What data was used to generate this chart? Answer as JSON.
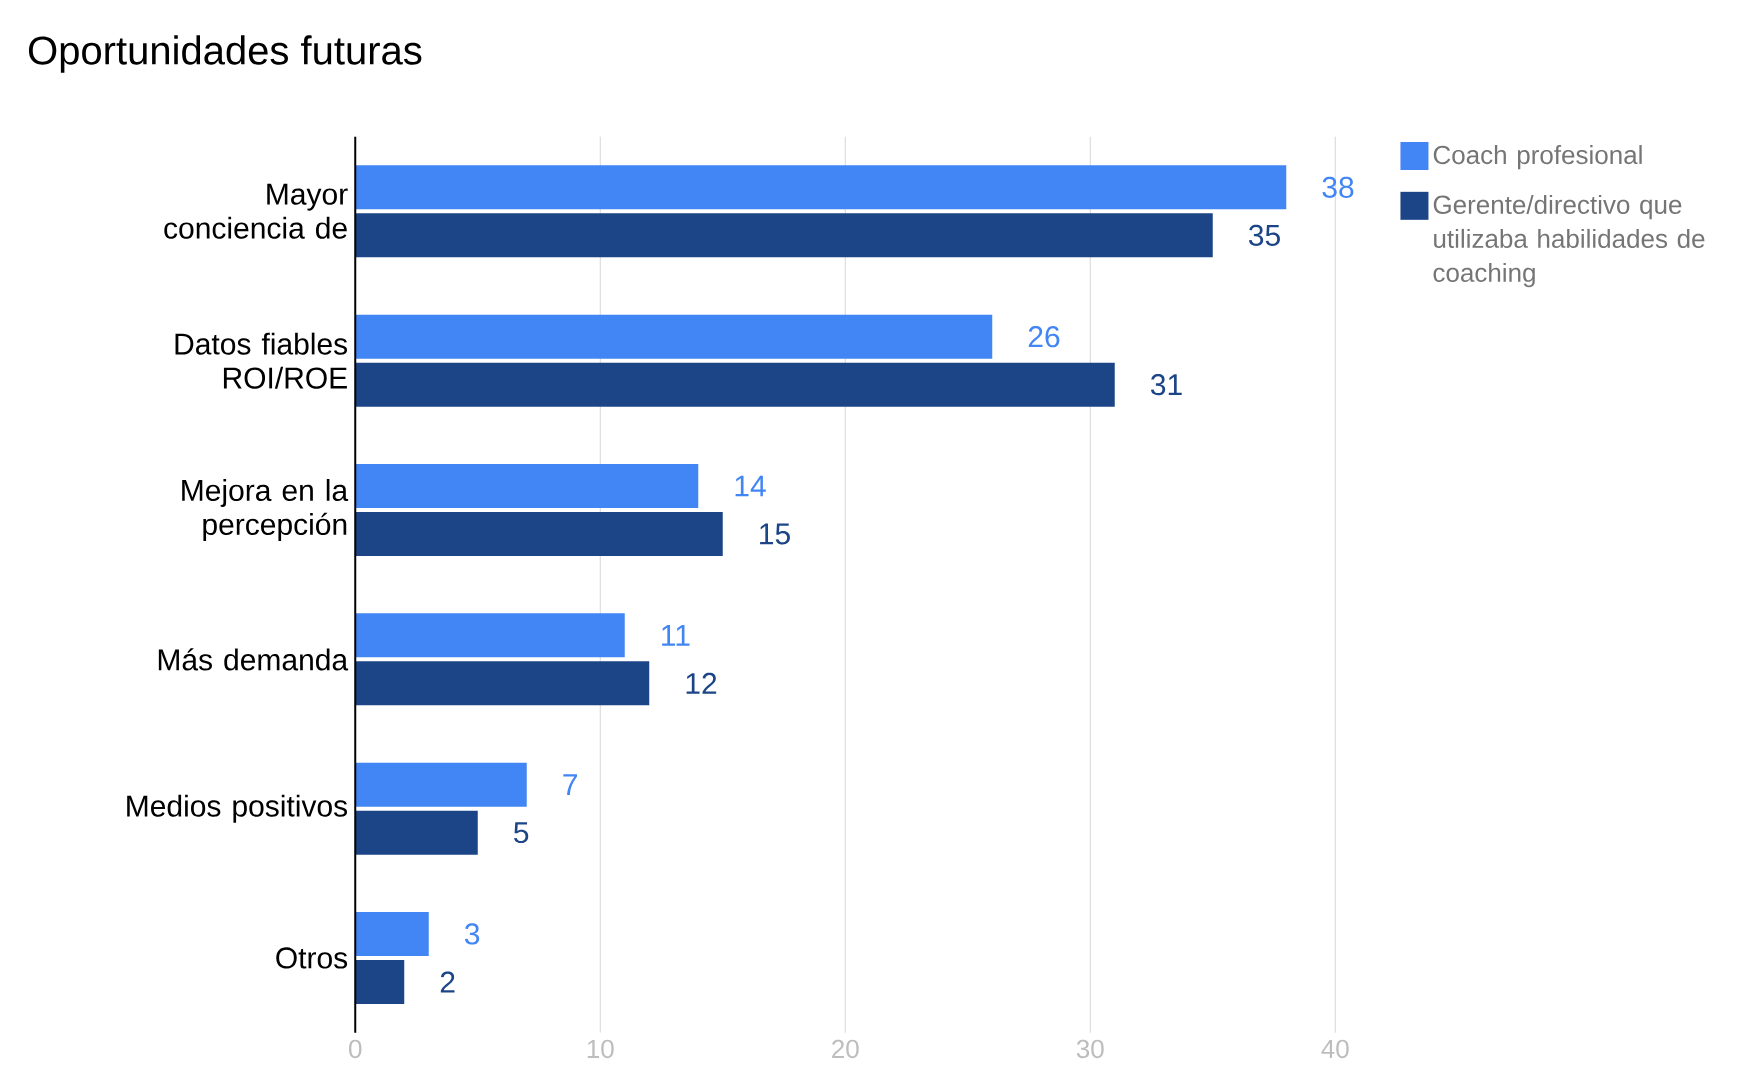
{
  "chart_data": {
    "type": "bar",
    "orientation": "horizontal",
    "title": "Oportunidades futuras",
    "categories": [
      "Mayor conciencia de",
      "Datos fiables ROI/ROE",
      "Mejora en la percepción",
      "Más demanda",
      "Medios positivos",
      "Otros"
    ],
    "series": [
      {
        "name": "Coach profesional",
        "color": "#4285f4",
        "values": [
          38,
          26,
          14,
          11,
          7,
          3
        ]
      },
      {
        "name": "Gerente/directivo que utilizaba habilidades de coaching",
        "color": "#1c4587",
        "values": [
          35,
          31,
          15,
          12,
          5,
          2
        ]
      }
    ],
    "xlim": [
      0,
      40
    ],
    "xticks": [
      0,
      10,
      20,
      30,
      40
    ],
    "grid": "x",
    "legend": "top right",
    "data_labels": true
  }
}
